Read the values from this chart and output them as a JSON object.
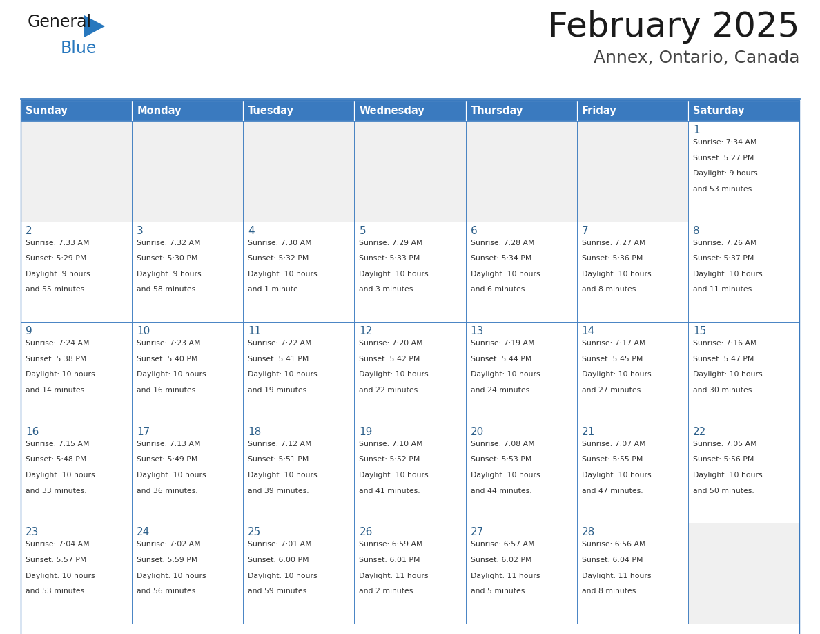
{
  "title": "February 2025",
  "subtitle": "Annex, Ontario, Canada",
  "header_color": "#3a7abf",
  "header_text_color": "#ffffff",
  "cell_bg_color": "#ffffff",
  "empty_cell_bg_color": "#f0f0f0",
  "day_number_color": "#2c5f8a",
  "text_color": "#333333",
  "border_color": "#3a7abf",
  "logo_text_color": "#1a1a1a",
  "logo_blue_color": "#2878be",
  "days_of_week": [
    "Sunday",
    "Monday",
    "Tuesday",
    "Wednesday",
    "Thursday",
    "Friday",
    "Saturday"
  ],
  "calendar_data": [
    [
      null,
      null,
      null,
      null,
      null,
      null,
      {
        "day": "1",
        "sunrise": "7:34 AM",
        "sunset": "5:27 PM",
        "daylight": "9 hours and 53 minutes."
      }
    ],
    [
      {
        "day": "2",
        "sunrise": "7:33 AM",
        "sunset": "5:29 PM",
        "daylight": "9 hours and 55 minutes."
      },
      {
        "day": "3",
        "sunrise": "7:32 AM",
        "sunset": "5:30 PM",
        "daylight": "9 hours and 58 minutes."
      },
      {
        "day": "4",
        "sunrise": "7:30 AM",
        "sunset": "5:32 PM",
        "daylight": "10 hours and 1 minute."
      },
      {
        "day": "5",
        "sunrise": "7:29 AM",
        "sunset": "5:33 PM",
        "daylight": "10 hours and 3 minutes."
      },
      {
        "day": "6",
        "sunrise": "7:28 AM",
        "sunset": "5:34 PM",
        "daylight": "10 hours and 6 minutes."
      },
      {
        "day": "7",
        "sunrise": "7:27 AM",
        "sunset": "5:36 PM",
        "daylight": "10 hours and 8 minutes."
      },
      {
        "day": "8",
        "sunrise": "7:26 AM",
        "sunset": "5:37 PM",
        "daylight": "10 hours and 11 minutes."
      }
    ],
    [
      {
        "day": "9",
        "sunrise": "7:24 AM",
        "sunset": "5:38 PM",
        "daylight": "10 hours and 14 minutes."
      },
      {
        "day": "10",
        "sunrise": "7:23 AM",
        "sunset": "5:40 PM",
        "daylight": "10 hours and 16 minutes."
      },
      {
        "day": "11",
        "sunrise": "7:22 AM",
        "sunset": "5:41 PM",
        "daylight": "10 hours and 19 minutes."
      },
      {
        "day": "12",
        "sunrise": "7:20 AM",
        "sunset": "5:42 PM",
        "daylight": "10 hours and 22 minutes."
      },
      {
        "day": "13",
        "sunrise": "7:19 AM",
        "sunset": "5:44 PM",
        "daylight": "10 hours and 24 minutes."
      },
      {
        "day": "14",
        "sunrise": "7:17 AM",
        "sunset": "5:45 PM",
        "daylight": "10 hours and 27 minutes."
      },
      {
        "day": "15",
        "sunrise": "7:16 AM",
        "sunset": "5:47 PM",
        "daylight": "10 hours and 30 minutes."
      }
    ],
    [
      {
        "day": "16",
        "sunrise": "7:15 AM",
        "sunset": "5:48 PM",
        "daylight": "10 hours and 33 minutes."
      },
      {
        "day": "17",
        "sunrise": "7:13 AM",
        "sunset": "5:49 PM",
        "daylight": "10 hours and 36 minutes."
      },
      {
        "day": "18",
        "sunrise": "7:12 AM",
        "sunset": "5:51 PM",
        "daylight": "10 hours and 39 minutes."
      },
      {
        "day": "19",
        "sunrise": "7:10 AM",
        "sunset": "5:52 PM",
        "daylight": "10 hours and 41 minutes."
      },
      {
        "day": "20",
        "sunrise": "7:08 AM",
        "sunset": "5:53 PM",
        "daylight": "10 hours and 44 minutes."
      },
      {
        "day": "21",
        "sunrise": "7:07 AM",
        "sunset": "5:55 PM",
        "daylight": "10 hours and 47 minutes."
      },
      {
        "day": "22",
        "sunrise": "7:05 AM",
        "sunset": "5:56 PM",
        "daylight": "10 hours and 50 minutes."
      }
    ],
    [
      {
        "day": "23",
        "sunrise": "7:04 AM",
        "sunset": "5:57 PM",
        "daylight": "10 hours and 53 minutes."
      },
      {
        "day": "24",
        "sunrise": "7:02 AM",
        "sunset": "5:59 PM",
        "daylight": "10 hours and 56 minutes."
      },
      {
        "day": "25",
        "sunrise": "7:01 AM",
        "sunset": "6:00 PM",
        "daylight": "10 hours and 59 minutes."
      },
      {
        "day": "26",
        "sunrise": "6:59 AM",
        "sunset": "6:01 PM",
        "daylight": "11 hours and 2 minutes."
      },
      {
        "day": "27",
        "sunrise": "6:57 AM",
        "sunset": "6:02 PM",
        "daylight": "11 hours and 5 minutes."
      },
      {
        "day": "28",
        "sunrise": "6:56 AM",
        "sunset": "6:04 PM",
        "daylight": "11 hours and 8 minutes."
      },
      null
    ]
  ]
}
